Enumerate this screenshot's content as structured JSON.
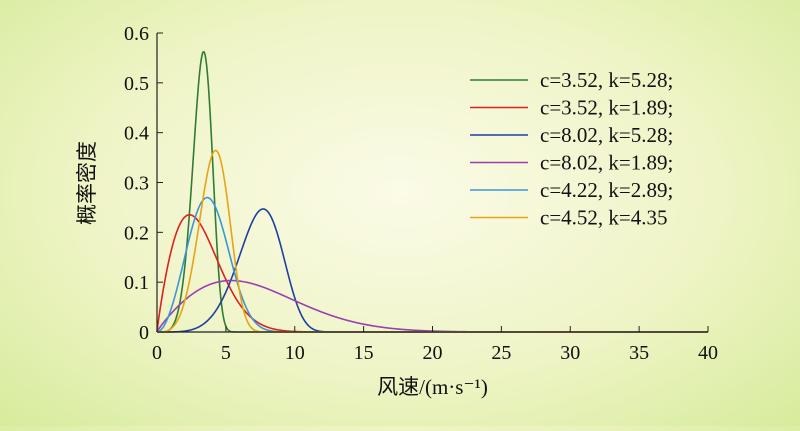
{
  "chart_data": {
    "type": "line",
    "title": "",
    "xlabel": "风速/(m·s⁻¹)",
    "ylabel": "概率密度",
    "xlim": [
      0,
      40
    ],
    "ylim": [
      0,
      0.6
    ],
    "xticks": [
      0,
      5,
      10,
      15,
      20,
      25,
      30,
      35,
      40
    ],
    "yticks": [
      0,
      0.1,
      0.2,
      0.3,
      0.4,
      0.5,
      0.6
    ],
    "grid": false,
    "legend_position": "top-right",
    "distribution": "weibull",
    "series": [
      {
        "name": "c=3.52, k=5.28;",
        "c": 3.52,
        "k": 5.28,
        "color": "#2e7d32"
      },
      {
        "name": "c=3.52, k=1.89;",
        "c": 3.52,
        "k": 1.89,
        "color": "#e02020"
      },
      {
        "name": "c=8.02, k=5.28;",
        "c": 8.02,
        "k": 5.28,
        "color": "#1f3f9f"
      },
      {
        "name": "c=8.02, k=1.89;",
        "c": 8.02,
        "k": 1.89,
        "color": "#9b3fb0"
      },
      {
        "name": "c=4.22, k=2.89;",
        "c": 4.22,
        "k": 2.89,
        "color": "#3d95d6"
      },
      {
        "name": "c=4.52, k=4.35",
        "c": 4.52,
        "k": 4.35,
        "color": "#e8a317"
      }
    ]
  }
}
